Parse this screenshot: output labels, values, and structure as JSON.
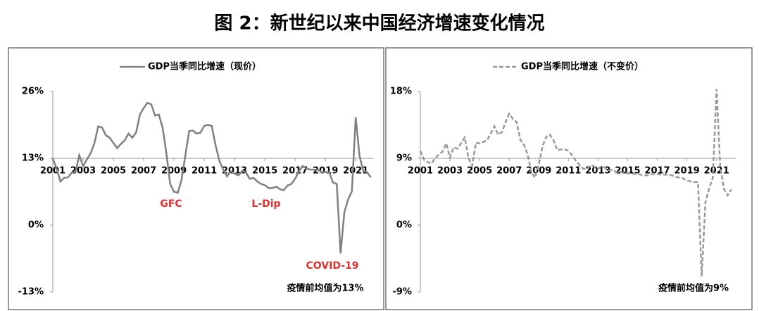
{
  "title": "图 2：新世纪以来中国经济增速变化情况",
  "chart_data": [
    {
      "type": "line",
      "legend": "top",
      "x_axis_crosses": 13,
      "xlim": [
        2001,
        2022.2
      ],
      "xticks": [
        2001,
        2003,
        2005,
        2007,
        2009,
        2011,
        2013,
        2015,
        2017,
        2019,
        2021
      ],
      "ylim": [
        -13,
        26
      ],
      "yticks": [
        {
          "value": -13,
          "label": "-13%"
        },
        {
          "value": 0,
          "label": "0%"
        },
        {
          "value": 13,
          "label": "13%"
        },
        {
          "value": 26,
          "label": "26%"
        }
      ],
      "x": [
        2001,
        2001.25,
        2001.5,
        2001.75,
        2002,
        2002.25,
        2002.5,
        2002.75,
        2003,
        2003.25,
        2003.5,
        2003.75,
        2004,
        2004.25,
        2004.5,
        2004.75,
        2005,
        2005.25,
        2005.5,
        2005.75,
        2006,
        2006.25,
        2006.5,
        2006.75,
        2007,
        2007.25,
        2007.5,
        2007.75,
        2008,
        2008.25,
        2008.5,
        2008.75,
        2009,
        2009.25,
        2009.5,
        2009.75,
        2010,
        2010.25,
        2010.5,
        2010.75,
        2011,
        2011.25,
        2011.5,
        2011.75,
        2012,
        2012.25,
        2012.5,
        2012.75,
        2013,
        2013.25,
        2013.5,
        2013.75,
        2014,
        2014.25,
        2014.5,
        2014.75,
        2015,
        2015.25,
        2015.5,
        2015.75,
        2016,
        2016.25,
        2016.5,
        2016.75,
        2017,
        2017.25,
        2017.5,
        2017.75,
        2018,
        2018.25,
        2018.5,
        2018.75,
        2019,
        2019.25,
        2019.5,
        2019.75,
        2020,
        2020.25,
        2020.5,
        2020.75,
        2021,
        2021.25,
        2021.5,
        2021.75,
        2022
      ],
      "series": [
        {
          "name": "GDP当季同比增速（现价）",
          "color": "#808080",
          "dash": false,
          "values": [
            13.0,
            11.0,
            8.5,
            9.2,
            9.3,
            10.2,
            10.4,
            13.6,
            11.5,
            12.8,
            14.0,
            16.0,
            19.2,
            19.0,
            17.5,
            17.0,
            16.0,
            15.0,
            15.8,
            16.5,
            17.8,
            17.0,
            18.0,
            21.5,
            22.8,
            23.8,
            23.5,
            21.3,
            21.5,
            19.0,
            14.0,
            8.0,
            6.5,
            6.3,
            8.8,
            13.5,
            18.3,
            18.4,
            17.8,
            18.0,
            19.3,
            19.5,
            19.3,
            15.5,
            12.5,
            10.8,
            9.5,
            10.5,
            10.0,
            9.7,
            10.5,
            10.3,
            9.0,
            9.2,
            8.5,
            8.0,
            7.8,
            7.2,
            7.2,
            7.5,
            7.0,
            6.8,
            7.7,
            8.0,
            9.0,
            10.5,
            11.5,
            11.0,
            10.8,
            10.8,
            10.8,
            10.3,
            10.3,
            10.3,
            8.3,
            8.0,
            -5.5,
            2.5,
            5.0,
            6.6,
            21.0,
            13.5,
            10.5,
            10.3,
            9.3
          ]
        }
      ],
      "annotations": [
        "GFC",
        "L-Dip",
        "COVID-19"
      ],
      "note": "疫情前均值为13%"
    },
    {
      "type": "line",
      "legend": "top",
      "x_axis_crosses": 9,
      "xlim": [
        2001,
        2022.3
      ],
      "xticks": [
        2001,
        2003,
        2005,
        2007,
        2009,
        2011,
        2013,
        2015,
        2017,
        2019,
        2021
      ],
      "ylim": [
        -9,
        18
      ],
      "yticks": [
        {
          "value": -9,
          "label": "-9%"
        },
        {
          "value": 0,
          "label": "0%"
        },
        {
          "value": 9,
          "label": "9%"
        },
        {
          "value": 18,
          "label": "18%"
        }
      ],
      "x": [
        2001,
        2001.25,
        2001.5,
        2001.75,
        2002,
        2002.25,
        2002.5,
        2002.75,
        2003,
        2003.25,
        2003.5,
        2003.75,
        2004,
        2004.25,
        2004.5,
        2004.75,
        2005,
        2005.25,
        2005.5,
        2005.75,
        2006,
        2006.25,
        2006.5,
        2006.75,
        2007,
        2007.25,
        2007.5,
        2007.75,
        2008,
        2008.25,
        2008.5,
        2008.75,
        2009,
        2009.25,
        2009.5,
        2009.75,
        2010,
        2010.25,
        2010.5,
        2010.75,
        2011,
        2011.25,
        2011.5,
        2011.75,
        2012,
        2012.25,
        2012.5,
        2012.75,
        2013,
        2013.25,
        2013.5,
        2013.75,
        2014,
        2014.25,
        2014.5,
        2014.75,
        2015,
        2015.25,
        2015.5,
        2015.75,
        2016,
        2016.25,
        2016.5,
        2016.75,
        2017,
        2017.25,
        2017.5,
        2017.75,
        2018,
        2018.25,
        2018.5,
        2018.75,
        2019,
        2019.25,
        2019.5,
        2019.75,
        2020,
        2020.25,
        2020.5,
        2020.75,
        2021,
        2021.25,
        2021.5,
        2021.75,
        2022
      ],
      "series": [
        {
          "name": "GDP当季同比增速（不变价）",
          "color": "#999999",
          "dash": true,
          "values": [
            10.0,
            8.8,
            8.5,
            8.3,
            9.0,
            9.5,
            9.9,
            11.0,
            9.1,
            10.5,
            10.3,
            11.0,
            11.8,
            9.0,
            8.0,
            11.1,
            11.0,
            11.2,
            11.4,
            12.3,
            13.3,
            12.2,
            12.5,
            13.8,
            15.0,
            14.3,
            13.9,
            11.5,
            10.8,
            9.5,
            7.1,
            6.4,
            8.2,
            10.6,
            11.9,
            12.2,
            11.4,
            10.1,
            10.2,
            10.2,
            10.0,
            9.4,
            8.7,
            8.1,
            7.6,
            7.5,
            8.1,
            7.9,
            7.6,
            7.9,
            7.7,
            7.4,
            7.5,
            7.1,
            7.2,
            7.0,
            7.0,
            6.9,
            6.9,
            6.9,
            6.7,
            6.7,
            6.8,
            6.9,
            6.9,
            6.8,
            6.8,
            6.8,
            6.7,
            6.5,
            6.4,
            6.3,
            6.0,
            5.9,
            5.8,
            5.8,
            -6.9,
            3.1,
            4.9,
            6.4,
            18.3,
            7.9,
            4.9,
            4.0,
            4.8
          ]
        }
      ],
      "note": "疫情前均值为9%"
    }
  ]
}
